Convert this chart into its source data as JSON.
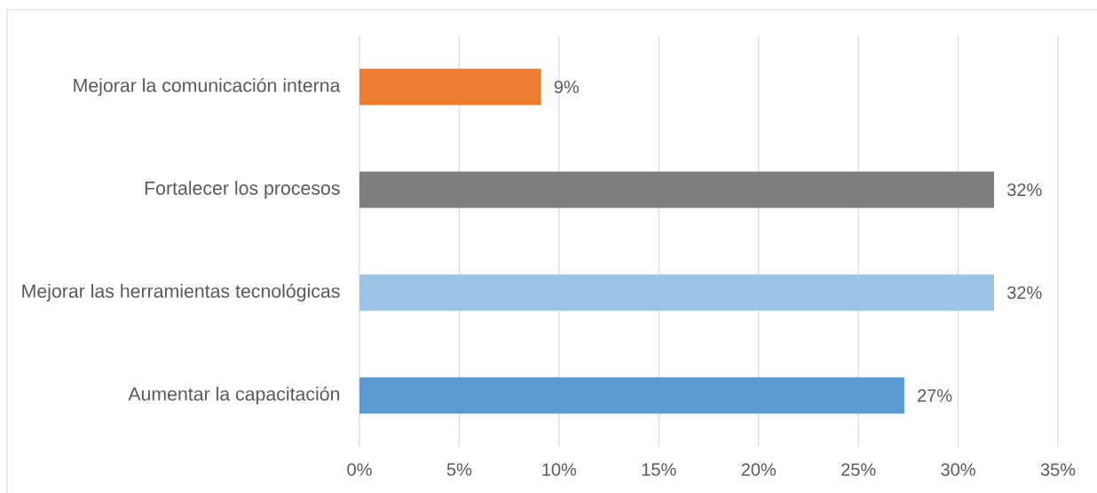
{
  "chart_data": {
    "type": "bar",
    "orientation": "horizontal",
    "categories": [
      "Mejorar la comunicación interna",
      "Fortalecer los procesos",
      "Mejorar las herramientas tecnológicas",
      "Aumentar la capacitación"
    ],
    "values": [
      9.1,
      31.8,
      31.8,
      27.3
    ],
    "colors": [
      "#ed7d31",
      "#7f7f7f",
      "#9dc3e6",
      "#5b9bd5"
    ],
    "value_labels": [
      "9%",
      "32%",
      "32%",
      "27%"
    ],
    "xlim": [
      0,
      35
    ],
    "xticks": [
      {
        "value": 0,
        "label": "0%"
      },
      {
        "value": 5,
        "label": "5%"
      },
      {
        "value": 10,
        "label": "10%"
      },
      {
        "value": 15,
        "label": "15%"
      },
      {
        "value": 20,
        "label": "20%"
      },
      {
        "value": 25,
        "label": "25%"
      },
      {
        "value": 30,
        "label": "30%"
      },
      {
        "value": 35,
        "label": "35%"
      }
    ],
    "grid": "x"
  }
}
